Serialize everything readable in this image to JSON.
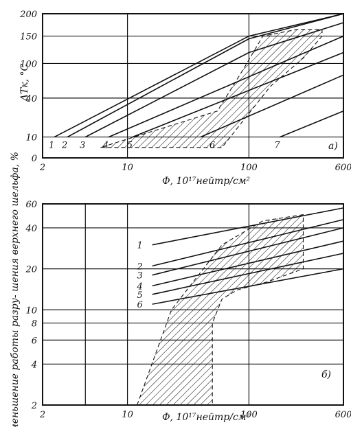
{
  "chart_data": [
    {
      "type": "line",
      "panel_label": "а)",
      "x_axis": {
        "label": "Ф, 10¹⁷нейтр/см²",
        "scale": "log",
        "range": [
          2,
          600
        ],
        "ticks": [
          "2",
          "10",
          "100",
          "600"
        ]
      },
      "y_axis": {
        "label": "ΔTк, °C",
        "range": [
          0,
          200
        ],
        "ticks": [
          "0",
          "10",
          "40",
          "100",
          "150",
          "200"
        ]
      },
      "grid": true,
      "series": [
        {
          "name": "1",
          "x": [
            2.5,
            100,
            600
          ],
          "y": [
            10,
            150,
            200
          ]
        },
        {
          "name": "2",
          "x": [
            3.2,
            100,
            600
          ],
          "y": [
            10,
            145,
            200
          ]
        },
        {
          "name": "3",
          "x": [
            4.5,
            100,
            600
          ],
          "y": [
            10,
            120,
            180
          ]
        },
        {
          "name": "4",
          "x": [
            7,
            600
          ],
          "y": [
            10,
            150
          ]
        },
        {
          "name": "5",
          "x": [
            11,
            600
          ],
          "y": [
            10,
            120
          ]
        },
        {
          "name": "6",
          "x": [
            40,
            600
          ],
          "y": [
            10,
            80
          ]
        },
        {
          "name": "7",
          "x": [
            180,
            600
          ],
          "y": [
            10,
            30
          ]
        }
      ],
      "curve_labels": [
        "1",
        "2",
        "3",
        "4",
        "5",
        "6",
        "7"
      ],
      "scatter_band": {
        "x": [
          6,
          10,
          60,
          150,
          280,
          400,
          400,
          250,
          130,
          90,
          55,
          6
        ],
        "y": [
          5,
          5,
          5,
          60,
          110,
          150,
          165,
          165,
          150,
          90,
          30,
          5
        ]
      }
    },
    {
      "type": "line",
      "panel_label": "б)",
      "x_axis": {
        "label": "Ф, 10¹⁷нейтр/см²",
        "scale": "log",
        "range": [
          2,
          600
        ],
        "ticks": [
          "2",
          "10",
          "100",
          "600"
        ]
      },
      "y_axis": {
        "label": "Уменьшение работы разру- шения верхнего шельфа, %",
        "scale": "log",
        "range": [
          2,
          60
        ],
        "ticks": [
          "2",
          "4",
          "6",
          "8",
          "10",
          "20",
          "40",
          "60"
        ]
      },
      "grid": true,
      "series": [
        {
          "name": "1",
          "x": [
            16,
            600
          ],
          "y": [
            30,
            56
          ]
        },
        {
          "name": "2",
          "x": [
            16,
            600
          ],
          "y": [
            21,
            46
          ]
        },
        {
          "name": "3",
          "x": [
            16,
            600
          ],
          "y": [
            18,
            40
          ]
        },
        {
          "name": "4",
          "x": [
            16,
            600
          ],
          "y": [
            15,
            32
          ]
        },
        {
          "name": "5",
          "x": [
            16,
            600
          ],
          "y": [
            13,
            26
          ]
        },
        {
          "name": "6",
          "x": [
            16,
            600
          ],
          "y": [
            11,
            20
          ]
        }
      ],
      "curve_labels": [
        "1",
        "2",
        "3",
        "4",
        "5",
        "6"
      ],
      "scatter_band": {
        "x": [
          12,
          23,
          60,
          130,
          280,
          280,
          140,
          80,
          60,
          50,
          50,
          12
        ],
        "y": [
          2,
          10,
          30,
          45,
          50,
          20,
          16,
          14,
          12,
          8,
          2,
          2
        ]
      }
    }
  ]
}
